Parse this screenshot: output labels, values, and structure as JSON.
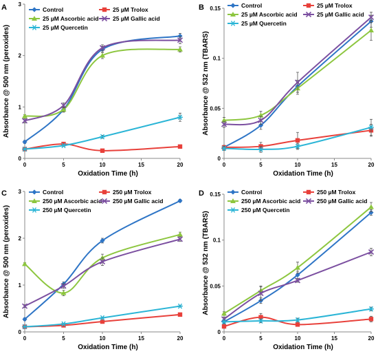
{
  "colors": {
    "Control": "#2E75C6",
    "Trolox": "#E8403A",
    "Ascorbic": "#8DC63F",
    "Gallic": "#7B4FA0",
    "Quercetin": "#2BB5D6"
  },
  "chart_data": [
    {
      "panel": "A",
      "type": "line",
      "xlabel": "Oxidation Time (h)",
      "ylabel": "Absorbance @ 500 nm (peroxides)",
      "xlim": [
        0,
        20
      ],
      "ylim": [
        0,
        3
      ],
      "xticks": [
        0,
        5,
        10,
        15,
        20
      ],
      "yticks": [
        0,
        1,
        2,
        3
      ],
      "yticklabels": [
        "0",
        "1",
        "2",
        "3"
      ],
      "x": [
        0,
        5,
        10,
        20
      ],
      "series": [
        {
          "name": "Control",
          "key": "Control",
          "marker": "diamond",
          "values": [
            0.32,
            0.95,
            2.12,
            2.38
          ],
          "err": [
            0.03,
            0.05,
            0.06,
            0.05
          ]
        },
        {
          "name": "25 µM Trolox",
          "key": "Trolox",
          "marker": "square",
          "values": [
            0.18,
            0.28,
            0.15,
            0.23
          ],
          "err": [
            0.02,
            0.02,
            0.02,
            0.02
          ]
        },
        {
          "name": "25 µM Ascorbic acid",
          "key": "Ascorbic",
          "marker": "triangle",
          "values": [
            0.82,
            0.95,
            2.0,
            2.12
          ],
          "err": [
            0.03,
            0.04,
            0.06,
            0.05
          ]
        },
        {
          "name": "25 µM Gallic acid",
          "key": "Gallic",
          "marker": "x",
          "values": [
            0.73,
            1.03,
            2.15,
            2.3
          ],
          "err": [
            0.04,
            0.05,
            0.06,
            0.07
          ]
        },
        {
          "name": "25 µM Quercetin",
          "key": "Quercetin",
          "marker": "star",
          "values": [
            0.18,
            0.25,
            0.42,
            0.8
          ],
          "err": [
            0.02,
            0.02,
            0.03,
            0.08
          ]
        }
      ],
      "legend": "top"
    },
    {
      "panel": "B",
      "type": "line",
      "xlabel": "Oxidation Time (h)",
      "ylabel": "Absorbance @ 532 nm (TBARS)",
      "xlim": [
        0,
        20
      ],
      "ylim": [
        0,
        0.15
      ],
      "xticks": [
        0,
        5,
        10,
        15,
        20
      ],
      "yticks": [
        0,
        0.05,
        0.1,
        0.15
      ],
      "yticklabels": [
        "0",
        "0.05",
        "0.1",
        "0.15"
      ],
      "x": [
        0,
        5,
        10,
        20
      ],
      "series": [
        {
          "name": "Control",
          "key": "Control",
          "marker": "diamond",
          "values": [
            0.011,
            0.033,
            0.072,
            0.137
          ],
          "err": [
            0.002,
            0.004,
            0.006,
            0.006
          ]
        },
        {
          "name": "25 µM Trolox",
          "key": "Trolox",
          "marker": "square",
          "values": [
            0.011,
            0.012,
            0.018,
            0.028
          ],
          "err": [
            0.002,
            0.004,
            0.008,
            0.006
          ]
        },
        {
          "name": "25 µM Ascorbic acid",
          "key": "Ascorbic",
          "marker": "triangle",
          "values": [
            0.038,
            0.043,
            0.07,
            0.128
          ],
          "err": [
            0.003,
            0.004,
            0.006,
            0.01
          ]
        },
        {
          "name": "25 µM Gallic acid",
          "key": "Gallic",
          "marker": "x",
          "values": [
            0.034,
            0.038,
            0.076,
            0.141
          ],
          "err": [
            0.003,
            0.004,
            0.01,
            0.005
          ]
        },
        {
          "name": "25 µM Quercetin",
          "key": "Quercetin",
          "marker": "star",
          "values": [
            0.01,
            0.009,
            0.012,
            0.031
          ],
          "err": [
            0.002,
            0.003,
            0.003,
            0.008
          ]
        }
      ],
      "legend": "top"
    },
    {
      "panel": "C",
      "type": "line",
      "xlabel": "Oxidation Time (h)",
      "ylabel": "Absorbance @ 500 nm (peroxides)",
      "xlim": [
        0,
        20
      ],
      "ylim": [
        0,
        3
      ],
      "xticks": [
        0,
        5,
        10,
        15,
        20
      ],
      "yticks": [
        0,
        1,
        2,
        3
      ],
      "yticklabels": [
        "0",
        "1",
        "2",
        "3"
      ],
      "x": [
        0,
        5,
        10,
        20
      ],
      "series": [
        {
          "name": "Control",
          "key": "Control",
          "marker": "diamond",
          "values": [
            0.27,
            1.02,
            1.95,
            2.8
          ],
          "err": [
            0.03,
            0.05,
            0.05,
            0.03
          ]
        },
        {
          "name": "250 µM Trolox",
          "key": "Trolox",
          "marker": "square",
          "values": [
            0.11,
            0.14,
            0.22,
            0.37
          ],
          "err": [
            0.01,
            0.01,
            0.02,
            0.02
          ]
        },
        {
          "name": "250 µM Ascorbic acid",
          "key": "Ascorbic",
          "marker": "triangle",
          "values": [
            1.45,
            0.83,
            1.58,
            2.08
          ],
          "err": [
            0.03,
            0.06,
            0.08,
            0.05
          ]
        },
        {
          "name": "250 µM Gallic acid",
          "key": "Gallic",
          "marker": "x",
          "values": [
            0.55,
            0.98,
            1.5,
            1.98
          ],
          "err": [
            0.03,
            0.05,
            0.08,
            0.05
          ]
        },
        {
          "name": "250 µM Quercetin",
          "key": "Quercetin",
          "marker": "star",
          "values": [
            0.11,
            0.17,
            0.3,
            0.55
          ],
          "err": [
            0.01,
            0.01,
            0.02,
            0.02
          ]
        }
      ],
      "legend": "top"
    },
    {
      "panel": "D",
      "type": "line",
      "xlabel": "Oxidation Time (h)",
      "ylabel": "Absorbance @ 532 nm (TBARS)",
      "xlim": [
        0,
        20
      ],
      "ylim": [
        0,
        0.15
      ],
      "xticks": [
        0,
        5,
        10,
        15,
        20
      ],
      "yticks": [
        0,
        0.05,
        0.1,
        0.15
      ],
      "yticklabels": [
        "0",
        "0.05",
        "0.1",
        "0.15"
      ],
      "x": [
        0,
        5,
        10,
        20
      ],
      "series": [
        {
          "name": "Control",
          "key": "Control",
          "marker": "diamond",
          "values": [
            0.011,
            0.034,
            0.062,
            0.13
          ],
          "err": [
            0.002,
            0.003,
            0.004,
            0.003
          ]
        },
        {
          "name": "250 µM Trolox",
          "key": "Trolox",
          "marker": "square",
          "values": [
            0.006,
            0.016,
            0.008,
            0.014
          ],
          "err": [
            0.002,
            0.004,
            0.002,
            0.003
          ]
        },
        {
          "name": "250 µM Ascorbic acid",
          "key": "Ascorbic",
          "marker": "triangle",
          "values": [
            0.02,
            0.045,
            0.07,
            0.136
          ],
          "err": [
            0.002,
            0.004,
            0.006,
            0.005
          ]
        },
        {
          "name": "250 µM Gallic acid",
          "key": "Gallic",
          "marker": "x",
          "values": [
            0.014,
            0.042,
            0.056,
            0.087
          ],
          "err": [
            0.002,
            0.008,
            0.002,
            0.004
          ]
        },
        {
          "name": "250 µM Quercetin",
          "key": "Quercetin",
          "marker": "star",
          "values": [
            0.011,
            0.012,
            0.013,
            0.025
          ],
          "err": [
            0.002,
            0.002,
            0.002,
            0.002
          ]
        }
      ],
      "legend": "top"
    }
  ]
}
